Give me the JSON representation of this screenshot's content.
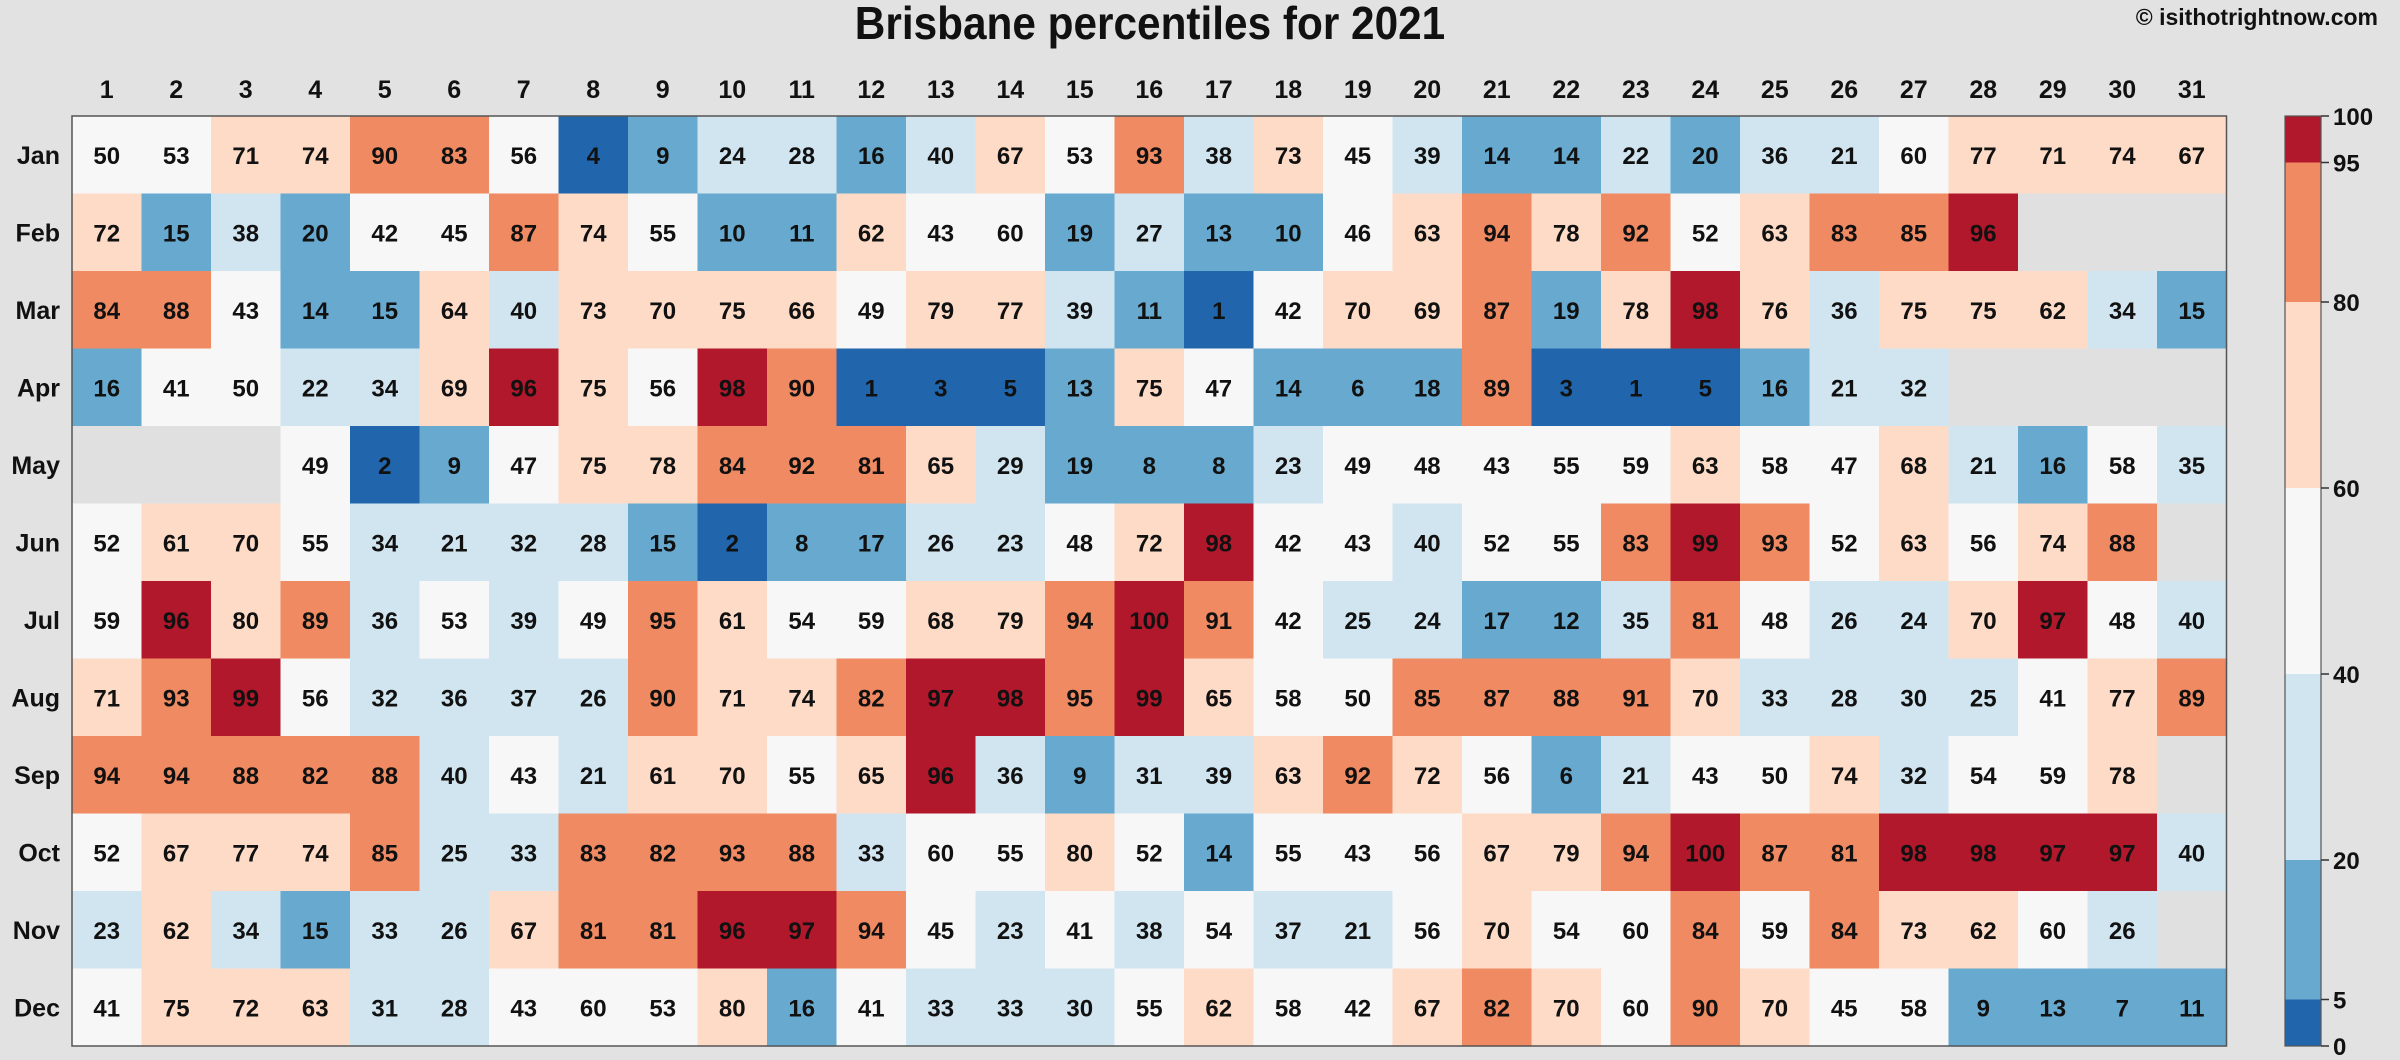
{
  "header": {
    "title": "Brisbane percentiles for 2021",
    "credit": "© isithotrightnow.com"
  },
  "chart_data": {
    "type": "heatmap",
    "title": "Brisbane percentiles for 2021",
    "x": [
      1,
      2,
      3,
      4,
      5,
      6,
      7,
      8,
      9,
      10,
      11,
      12,
      13,
      14,
      15,
      16,
      17,
      18,
      19,
      20,
      21,
      22,
      23,
      24,
      25,
      26,
      27,
      28,
      29,
      30,
      31
    ],
    "y": [
      "Jan",
      "Feb",
      "Mar",
      "Apr",
      "May",
      "Jun",
      "Jul",
      "Aug",
      "Sep",
      "Oct",
      "Nov",
      "Dec"
    ],
    "values": [
      [
        50,
        53,
        71,
        74,
        90,
        83,
        56,
        4,
        9,
        24,
        28,
        16,
        40,
        67,
        53,
        93,
        38,
        73,
        45,
        39,
        14,
        14,
        22,
        20,
        36,
        21,
        60,
        77,
        71,
        74,
        67
      ],
      [
        72,
        15,
        38,
        20,
        42,
        45,
        87,
        74,
        55,
        10,
        11,
        62,
        43,
        60,
        19,
        27,
        13,
        10,
        46,
        63,
        94,
        78,
        92,
        52,
        63,
        83,
        85,
        96,
        null,
        null,
        null
      ],
      [
        84,
        88,
        43,
        14,
        15,
        64,
        40,
        73,
        70,
        75,
        66,
        49,
        79,
        77,
        39,
        11,
        1,
        42,
        70,
        69,
        87,
        19,
        78,
        98,
        76,
        36,
        75,
        75,
        62,
        34,
        15
      ],
      [
        16,
        41,
        50,
        22,
        34,
        69,
        96,
        75,
        56,
        98,
        90,
        1,
        3,
        5,
        13,
        75,
        47,
        14,
        6,
        18,
        89,
        3,
        1,
        5,
        16,
        21,
        32,
        null,
        null,
        null,
        null
      ],
      [
        null,
        null,
        null,
        49,
        2,
        9,
        47,
        75,
        78,
        84,
        92,
        81,
        65,
        29,
        19,
        8,
        8,
        23,
        49,
        48,
        43,
        55,
        59,
        63,
        58,
        47,
        68,
        21,
        16,
        58,
        35
      ],
      [
        52,
        61,
        70,
        55,
        34,
        21,
        32,
        28,
        15,
        2,
        8,
        17,
        26,
        23,
        48,
        72,
        98,
        42,
        43,
        40,
        52,
        55,
        83,
        99,
        93,
        52,
        63,
        56,
        74,
        88,
        null
      ],
      [
        59,
        96,
        80,
        89,
        36,
        53,
        39,
        49,
        95,
        61,
        54,
        59,
        68,
        79,
        94,
        100,
        91,
        42,
        25,
        24,
        17,
        12,
        35,
        81,
        48,
        26,
        24,
        70,
        97,
        48,
        40
      ],
      [
        71,
        93,
        99,
        56,
        32,
        36,
        37,
        26,
        90,
        71,
        74,
        82,
        97,
        98,
        95,
        99,
        65,
        58,
        50,
        85,
        87,
        88,
        91,
        70,
        33,
        28,
        30,
        25,
        41,
        77,
        89
      ],
      [
        94,
        94,
        88,
        82,
        88,
        40,
        43,
        21,
        61,
        70,
        55,
        65,
        96,
        36,
        9,
        31,
        39,
        63,
        92,
        72,
        56,
        6,
        21,
        43,
        50,
        74,
        32,
        54,
        59,
        78,
        null
      ],
      [
        52,
        67,
        77,
        74,
        85,
        25,
        33,
        83,
        82,
        93,
        88,
        33,
        60,
        55,
        80,
        52,
        14,
        55,
        43,
        56,
        67,
        79,
        94,
        100,
        87,
        81,
        98,
        98,
        97,
        97,
        40
      ],
      [
        23,
        62,
        34,
        15,
        33,
        26,
        67,
        81,
        81,
        96,
        97,
        94,
        45,
        23,
        41,
        38,
        54,
        37,
        21,
        56,
        70,
        54,
        60,
        84,
        59,
        84,
        73,
        62,
        60,
        26,
        null
      ],
      [
        41,
        75,
        72,
        63,
        31,
        28,
        43,
        60,
        53,
        80,
        16,
        41,
        33,
        33,
        30,
        55,
        62,
        58,
        42,
        67,
        82,
        70,
        60,
        90,
        70,
        45,
        58,
        9,
        13,
        7,
        11
      ]
    ],
    "colorbar": {
      "ticks": [
        0,
        5,
        20,
        40,
        60,
        80,
        95,
        100
      ],
      "colors": [
        "#2166ac",
        "#67a9cf",
        "#d1e5f0",
        "#f7f7f7",
        "#fddbc7",
        "#ef8a62",
        "#b2182b"
      ]
    },
    "missing_color": "#e0e0e0"
  }
}
